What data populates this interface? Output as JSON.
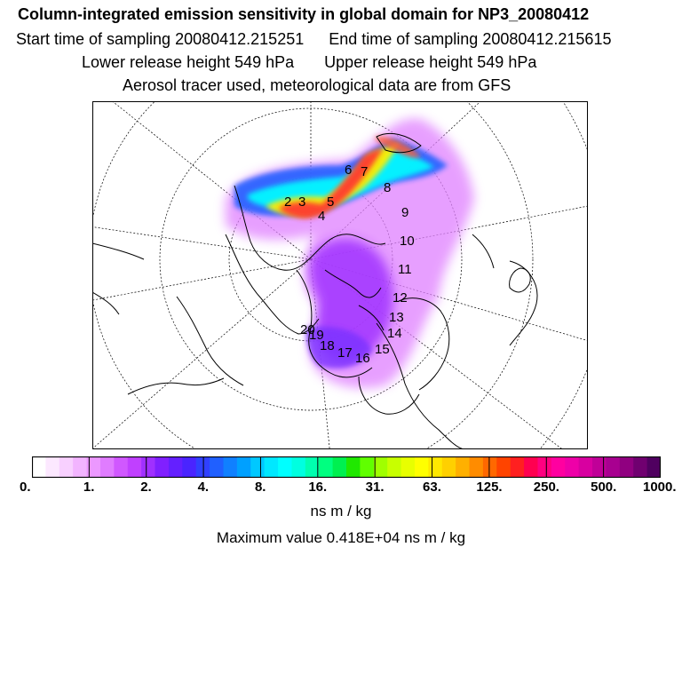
{
  "header": {
    "title": "Column-integrated emission sensitivity in global domain for NP3_20080412",
    "start": "Start time of sampling 20080412.215251",
    "end": "End time of sampling 20080412.215615",
    "lower": "Lower release height  549 hPa",
    "upper": "Upper release height  549 hPa",
    "info": "Aerosol tracer used, meteorological data are from GFS"
  },
  "map": {
    "point_labels": [
      "2",
      "3",
      "4",
      "5",
      "6",
      "7",
      "8",
      "9",
      "10",
      "11",
      "12",
      "13",
      "14",
      "15",
      "16",
      "17",
      "18",
      "19",
      "20"
    ]
  },
  "colorbar": {
    "tick_labels": [
      "0.",
      "1.",
      "2.",
      "4.",
      "8.",
      "16.",
      "31.",
      "63.",
      "125.",
      "250.",
      "500.",
      "1000."
    ],
    "colors": [
      "#ffffff",
      "#fce8ff",
      "#f8d0ff",
      "#f2b4ff",
      "#ec98ff",
      "#e07cff",
      "#d058ff",
      "#c040ff",
      "#a030ff",
      "#8020ff",
      "#6420ff",
      "#4a24ff",
      "#3040ff",
      "#2060ff",
      "#1080ff",
      "#00a0ff",
      "#00c8ff",
      "#00e8ff",
      "#00ffff",
      "#00ffe0",
      "#00ffb0",
      "#00ff80",
      "#00f050",
      "#20e800",
      "#60ff00",
      "#a0ff00",
      "#c8ff00",
      "#e8ff00",
      "#ffff00",
      "#ffe800",
      "#ffd000",
      "#ffb000",
      "#ff8c00",
      "#ff6800",
      "#ff4400",
      "#ff2020",
      "#ff0050",
      "#ff0080",
      "#ff00a0",
      "#ee00a8",
      "#d800a0",
      "#c00098",
      "#a80090",
      "#900080",
      "#700070",
      "#500060"
    ],
    "unit": "ns m / kg",
    "max_value_text": "Maximum value  0.418E+04 ns m / kg"
  }
}
